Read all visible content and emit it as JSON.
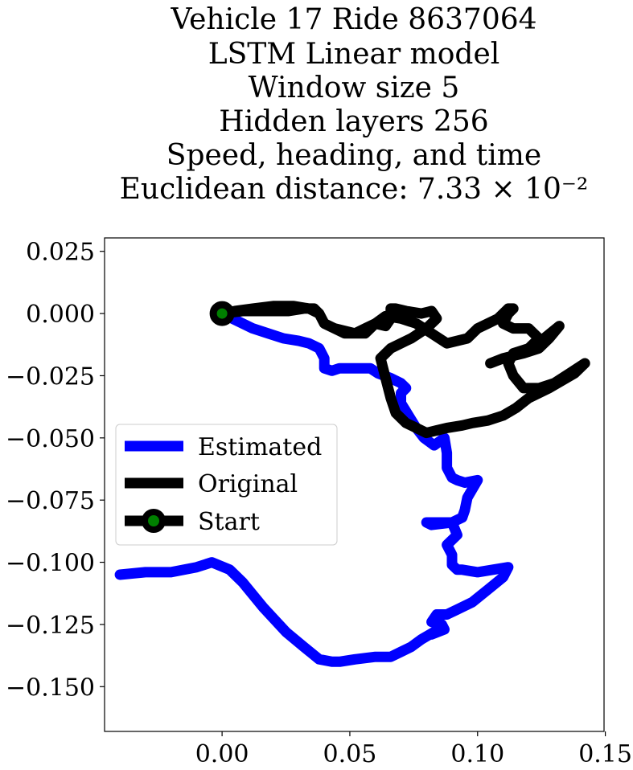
{
  "chart_data": {
    "type": "line",
    "title_lines": [
      "Vehicle 17 Ride 8637064",
      "LSTM Linear model",
      "Window size 5",
      "Hidden layers 256",
      "Speed, heading, and time",
      "Euclidean distance: 7.33 × 10⁻²"
    ],
    "xlabel": "",
    "ylabel": "",
    "xlim": [
      -0.046,
      0.1495
    ],
    "ylim": [
      -0.168,
      0.0304
    ],
    "xticks": [
      0.0,
      0.05,
      0.1,
      0.15
    ],
    "xtick_labels": [
      "0.00",
      "0.05",
      "0.10",
      "0.15"
    ],
    "yticks": [
      0.025,
      0.0,
      -0.025,
      -0.05,
      -0.075,
      -0.1,
      -0.125,
      -0.15
    ],
    "ytick_labels": [
      "0.025",
      "0.000",
      "−0.025",
      "−0.050",
      "−0.075",
      "−0.100",
      "−0.125",
      "−0.150"
    ],
    "grid": false,
    "legend_position": "center-left",
    "series": [
      {
        "name": "Estimated",
        "color": "#0000ff",
        "x": [
          0.0,
          0.006,
          0.012,
          0.018,
          0.024,
          0.03,
          0.034,
          0.038,
          0.04,
          0.04,
          0.043,
          0.046,
          0.052,
          0.058,
          0.061,
          0.066,
          0.07,
          0.072,
          0.07,
          0.07,
          0.073,
          0.076,
          0.079,
          0.083,
          0.087,
          0.088,
          0.088,
          0.09,
          0.092,
          0.095,
          0.1,
          0.096,
          0.095,
          0.094,
          0.092,
          0.09,
          0.082,
          0.08,
          0.09,
          0.092,
          0.088,
          0.09,
          0.09,
          0.092,
          0.094,
          0.1,
          0.106,
          0.112,
          0.11,
          0.104,
          0.098,
          0.092,
          0.088,
          0.084,
          0.082,
          0.086,
          0.087,
          0.082,
          0.083,
          0.078,
          0.074,
          0.07,
          0.066,
          0.06,
          0.052,
          0.046,
          0.043,
          0.038,
          0.032,
          0.025,
          0.016,
          0.008,
          0.003,
          -0.004,
          -0.01,
          -0.02,
          -0.03,
          -0.04
        ],
        "y": [
          0.0,
          -0.003,
          -0.006,
          -0.008,
          -0.01,
          -0.011,
          -0.012,
          -0.014,
          -0.018,
          -0.022,
          -0.023,
          -0.022,
          -0.022,
          -0.022,
          -0.024,
          -0.026,
          -0.028,
          -0.03,
          -0.032,
          -0.036,
          -0.041,
          -0.046,
          -0.05,
          -0.053,
          -0.05,
          -0.056,
          -0.062,
          -0.066,
          -0.067,
          -0.068,
          -0.067,
          -0.074,
          -0.079,
          -0.082,
          -0.083,
          -0.084,
          -0.085,
          -0.084,
          -0.084,
          -0.089,
          -0.093,
          -0.097,
          -0.101,
          -0.103,
          -0.103,
          -0.104,
          -0.103,
          -0.102,
          -0.106,
          -0.111,
          -0.116,
          -0.119,
          -0.121,
          -0.121,
          -0.124,
          -0.125,
          -0.127,
          -0.129,
          -0.128,
          -0.131,
          -0.134,
          -0.136,
          -0.138,
          -0.138,
          -0.139,
          -0.14,
          -0.14,
          -0.139,
          -0.134,
          -0.128,
          -0.118,
          -0.108,
          -0.103,
          -0.1,
          -0.102,
          -0.104,
          -0.104,
          -0.105
        ]
      },
      {
        "name": "Original",
        "color": "#000000",
        "x": [
          0.0,
          0.008,
          0.018,
          0.026,
          0.032,
          0.036,
          0.038,
          0.04,
          0.044,
          0.048,
          0.052,
          0.056,
          0.06,
          0.064,
          0.066,
          0.066,
          0.068,
          0.072,
          0.078,
          0.082,
          0.084,
          0.08,
          0.074,
          0.066,
          0.062,
          0.064,
          0.066,
          0.068,
          0.072,
          0.076,
          0.08,
          0.084,
          0.088,
          0.094,
          0.098,
          0.104,
          0.11,
          0.115,
          0.12,
          0.128,
          0.138,
          0.142,
          0.136,
          0.13,
          0.124,
          0.118,
          0.114,
          0.112,
          0.114,
          0.12,
          0.126,
          0.132,
          0.128,
          0.124,
          0.118,
          0.11,
          0.105,
          0.11,
          0.118,
          0.124,
          0.12,
          0.114,
          0.11,
          0.112,
          0.114,
          0.112,
          0.108,
          0.104,
          0.1,
          0.096,
          0.088,
          0.082,
          0.076,
          0.07,
          0.064,
          0.06,
          0.056,
          0.052,
          0.048,
          0.044,
          0.04,
          0.038,
          0.034,
          0.028,
          0.02,
          0.012,
          0.005,
          0.0
        ],
        "y": [
          0.0,
          0.001,
          0.001,
          0.001,
          0.002,
          0.002,
          0.0,
          -0.004,
          -0.006,
          -0.008,
          -0.008,
          -0.006,
          -0.004,
          -0.005,
          -0.002,
          0.002,
          0.002,
          0.001,
          0.0,
          0.001,
          -0.002,
          -0.006,
          -0.01,
          -0.014,
          -0.018,
          -0.026,
          -0.034,
          -0.04,
          -0.044,
          -0.046,
          -0.048,
          -0.047,
          -0.046,
          -0.045,
          -0.044,
          -0.043,
          -0.041,
          -0.038,
          -0.034,
          -0.03,
          -0.024,
          -0.02,
          -0.024,
          -0.028,
          -0.03,
          -0.03,
          -0.025,
          -0.02,
          -0.016,
          -0.014,
          -0.01,
          -0.005,
          -0.01,
          -0.014,
          -0.016,
          -0.018,
          -0.02,
          -0.018,
          -0.016,
          -0.01,
          -0.006,
          -0.006,
          -0.004,
          0.0,
          0.002,
          0.002,
          -0.002,
          -0.004,
          -0.006,
          -0.01,
          -0.012,
          -0.008,
          -0.004,
          -0.002,
          -0.001,
          -0.004,
          -0.008,
          -0.008,
          -0.007,
          -0.006,
          -0.004,
          0.0,
          0.002,
          0.003,
          0.003,
          0.002,
          0.001,
          0.0
        ]
      }
    ],
    "start_marker": {
      "name": "Start",
      "x": 0.0,
      "y": 0.0,
      "edge_color": "#000000",
      "face_color": "#008000"
    }
  }
}
